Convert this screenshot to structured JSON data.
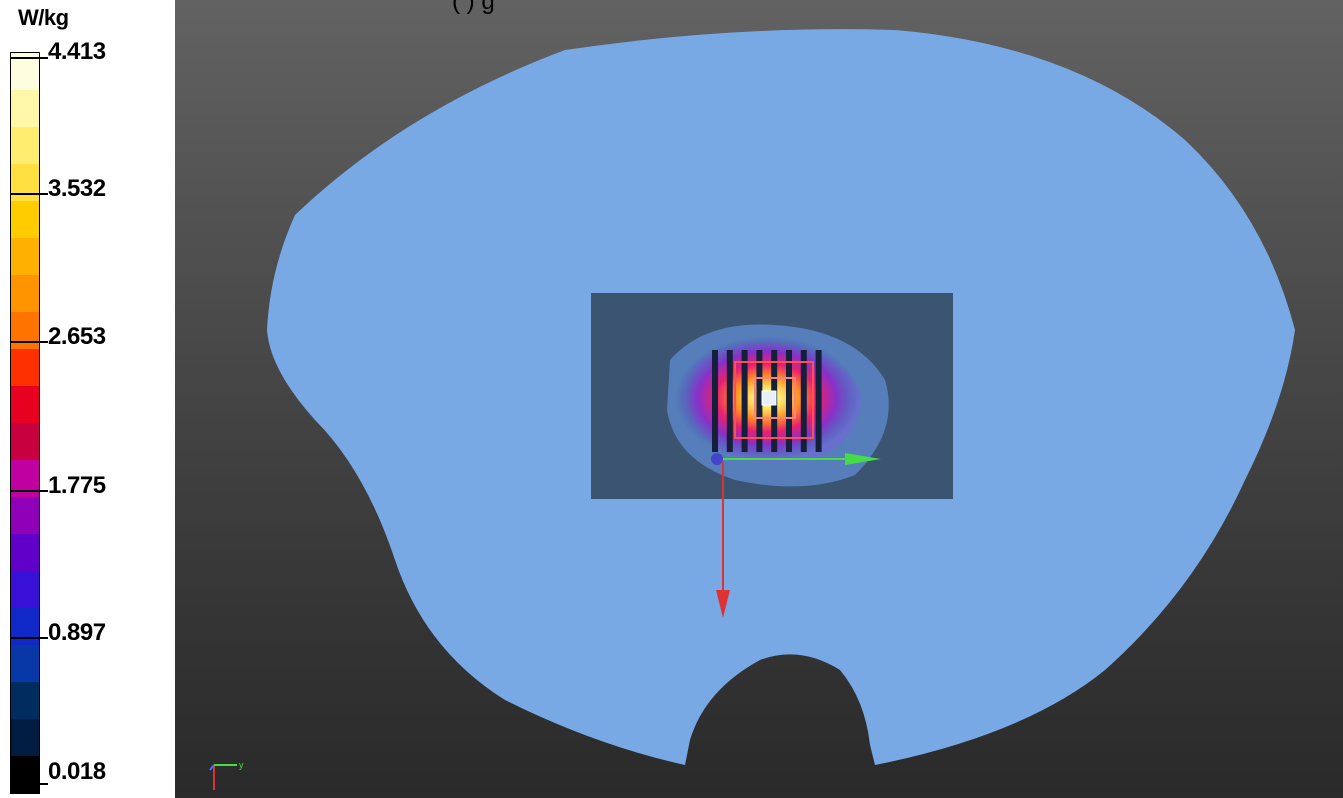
{
  "caption_fragment": "(              )                g",
  "legend": {
    "unit": "W/kg",
    "ticks": [
      {
        "label": "4.413"
      },
      {
        "label": "3.532"
      },
      {
        "label": "2.653"
      },
      {
        "label": "1.775"
      },
      {
        "label": "0.897"
      },
      {
        "label": "0.018"
      }
    ],
    "colors": [
      "#fffde0",
      "#fff7a8",
      "#ffed70",
      "#ffe040",
      "#ffcc00",
      "#ffb000",
      "#ff9400",
      "#ff7400",
      "#ff3000",
      "#e80020",
      "#c80040",
      "#c000a0",
      "#9000b8",
      "#6000c8",
      "#3810d8",
      "#1028c8",
      "#0838a8",
      "#002c60",
      "#001c40",
      "#000000"
    ]
  },
  "scene": {
    "phantom_color": "#78a9e5",
    "plane_color": "#3b5472",
    "antenna_bars": 8,
    "axes": {
      "x_color": "#44dd44",
      "y_color": "#dd3333"
    }
  }
}
